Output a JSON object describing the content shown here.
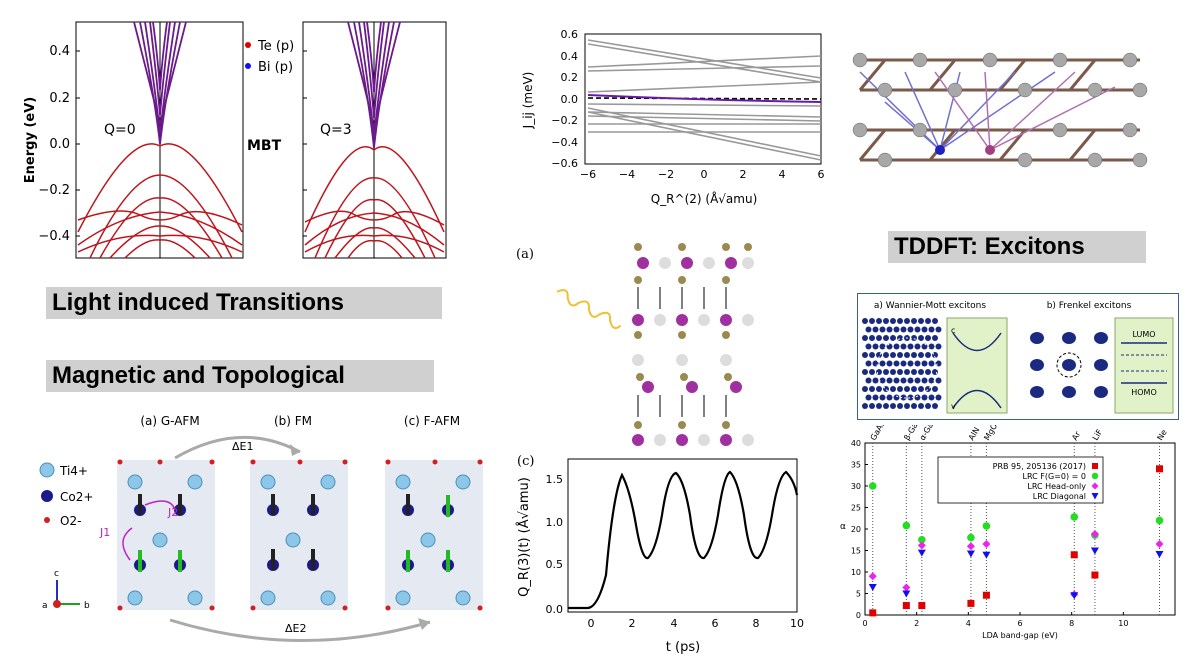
{
  "headings": {
    "light": "Light induced  Transitions",
    "magnetic": "Magnetic and Topological",
    "tddft": "TDDFT: Excitons"
  },
  "band": {
    "ylabel": "Energy (eV)",
    "yticks": [
      "0.4",
      "0.2",
      "0.0",
      "−0.2",
      "−0.4"
    ],
    "q0": "Q=0",
    "q3": "Q=3",
    "mbt": "MBT",
    "legend_te": "Te (p)",
    "legend_bi": "Bi (p)",
    "color_te": "#e00000",
    "color_bi": "#1010ff"
  },
  "jq_chart": {
    "ylabel": "J_ij (meV)",
    "xlabel": "Q_R^(2)  (Å√amu)",
    "xticks": [
      "−6",
      "−4",
      "−2",
      "0",
      "2",
      "4",
      "6"
    ],
    "yticks": [
      "0.6",
      "0.4",
      "0.2",
      "0.0",
      "−0.2",
      "−0.4",
      "−0.6"
    ]
  },
  "crystal_panel": {
    "label": "(a)"
  },
  "qr_chart": {
    "panel": "(c)",
    "ylabel": "Q_R(3)(t) (Å√amu)",
    "xlabel": "t (ps)",
    "xticks": [
      "0",
      "2",
      "4",
      "6",
      "8",
      "10"
    ],
    "yticks": [
      "0.0",
      "0.5",
      "1.0",
      "1.5"
    ]
  },
  "afm": {
    "labels": [
      "(a) G-AFM",
      "(b) FM",
      "(c) F-AFM"
    ],
    "legend": [
      "Ti4+",
      "Co2+",
      "O2-"
    ],
    "de1": "ΔE1",
    "de2": "ΔE2",
    "j1": "J1",
    "j2": "J2",
    "axes": [
      "c",
      "a",
      "b"
    ]
  },
  "exciton_box": {
    "wm_title": "a) Wannier-Mott excitons",
    "fr_title": "b) Frenkel excitons",
    "c": "c",
    "v": "v",
    "lumo": "LUMO",
    "homo": "HOMO"
  },
  "chart_data": {
    "type": "scatter",
    "title": "",
    "xlabel": "LDA band-gap (eV)",
    "ylabel": "α",
    "xlim": [
      0,
      12
    ],
    "ylim": [
      0,
      40
    ],
    "xticks": [
      "0",
      "2",
      "4",
      "6",
      "8",
      "10"
    ],
    "yticks": [
      "0",
      "5",
      "10",
      "15",
      "20",
      "25",
      "30",
      "35",
      "40"
    ],
    "materials": [
      {
        "name": "GaAs",
        "x": 0.3
      },
      {
        "name": "β-GaN",
        "x": 1.6
      },
      {
        "name": "α-GaN",
        "x": 2.2
      },
      {
        "name": "AlN",
        "x": 4.1
      },
      {
        "name": "MgO",
        "x": 4.7
      },
      {
        "name": "Ar",
        "x": 8.1
      },
      {
        "name": "LiF",
        "x": 8.9
      },
      {
        "name": "Ne",
        "x": 11.4
      }
    ],
    "series": [
      {
        "name": "PRB 95, 205136 (2017)",
        "marker": "square",
        "color": "#e00000",
        "x": [
          0.3,
          1.6,
          2.2,
          4.1,
          4.7,
          8.1,
          8.9,
          11.4
        ],
        "y": [
          0.5,
          2.2,
          2.2,
          2.7,
          4.6,
          14.0,
          9.3,
          34.0
        ]
      },
      {
        "name": "LRC F(G=0) = 0",
        "marker": "circle",
        "color": "#22dd22",
        "x": [
          0.3,
          1.6,
          2.2,
          4.1,
          4.7,
          8.1,
          8.9,
          11.4
        ],
        "y": [
          30.0,
          20.8,
          17.5,
          18.0,
          20.7,
          22.8,
          18.6,
          22.0
        ]
      },
      {
        "name": "LRC Head-only",
        "marker": "diamond",
        "color": "#ee22ee",
        "x": [
          0.3,
          1.6,
          2.2,
          4.1,
          4.7,
          8.1,
          8.9,
          11.4
        ],
        "y": [
          9.0,
          6.4,
          16.2,
          16.0,
          16.5,
          4.8,
          18.8,
          16.5
        ]
      },
      {
        "name": "LRC Diagonal",
        "marker": "triangle",
        "color": "#1010ee",
        "x": [
          0.3,
          1.6,
          2.2,
          4.1,
          4.7,
          8.1,
          8.9,
          11.4
        ],
        "y": [
          6.5,
          5.0,
          14.5,
          14.3,
          14.0,
          4.6,
          15.0,
          14.2
        ]
      }
    ]
  }
}
